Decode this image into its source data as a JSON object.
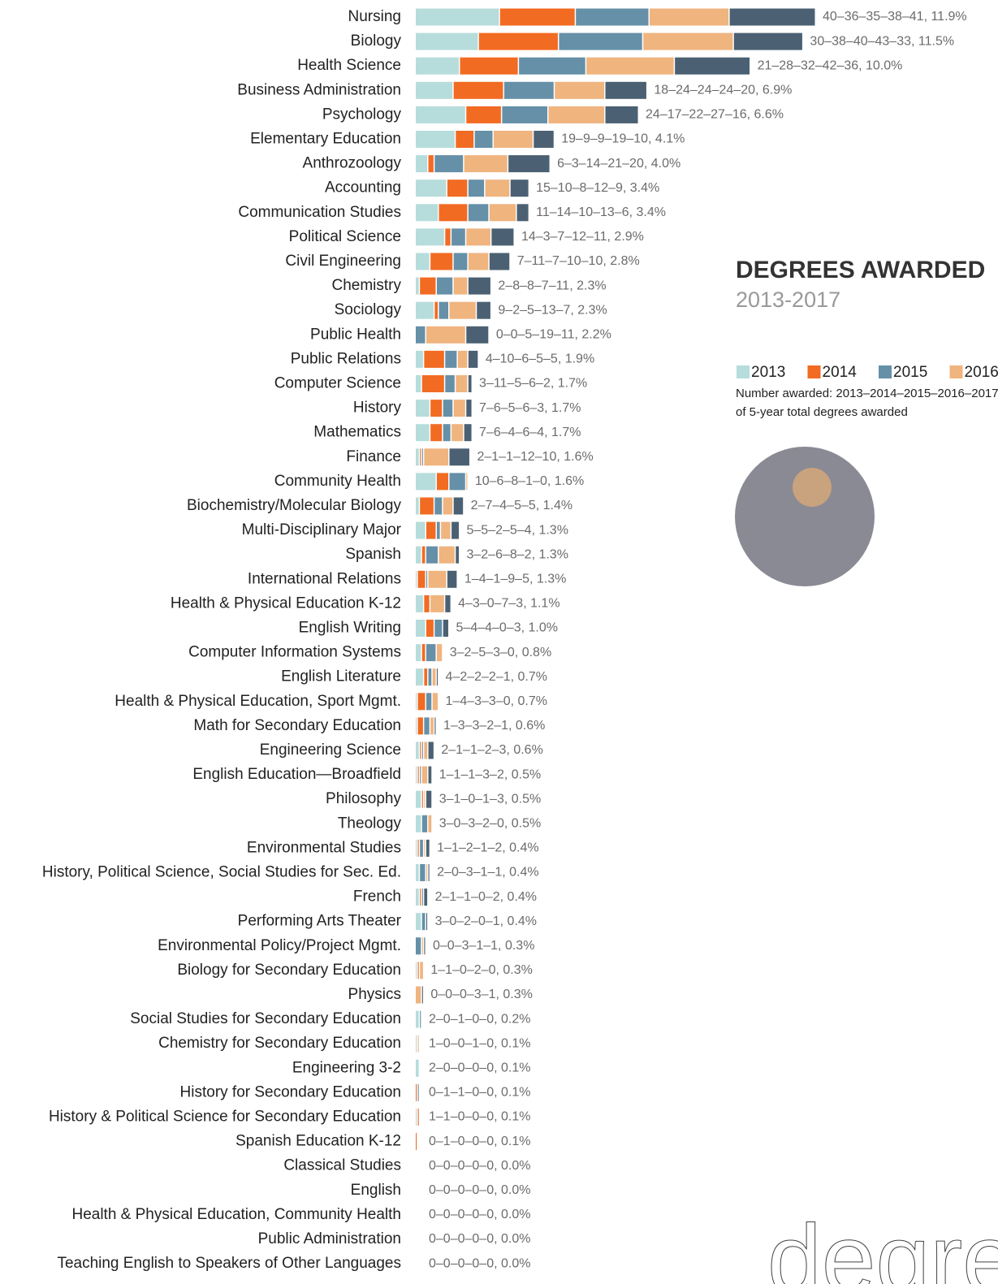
{
  "chart_data": {
    "type": "stacked_bar_horizontal",
    "title": "DEGREES AWARDED",
    "subtitle": "2013-2017",
    "note": [
      "Number awarded: 2013–2014–2015–2016–2017, %",
      "of 5-year total degrees awarded"
    ],
    "watermark": "degrees",
    "categories": [
      "Nursing",
      "Biology",
      "Health Science",
      "Business Administration",
      "Psychology",
      "Elementary Education",
      "Anthrozoology",
      "Accounting",
      "Communication Studies",
      "Political Science",
      "Civil Engineering",
      "Chemistry",
      "Sociology",
      "Public Health",
      "Public Relations",
      "Computer Science",
      "History",
      "Mathematics",
      "Finance",
      "Community Health",
      "Biochemistry/Molecular Biology",
      "Multi-Disciplinary Major",
      "Spanish",
      "International Relations",
      "Health & Physical Education K-12",
      "English Writing",
      "Computer Information Systems",
      "English Literature",
      "Health & Physical Education, Sport Mgmt.",
      "Math for Secondary Education",
      "Engineering Science",
      "English Education—Broadfield",
      "Philosophy",
      "Theology",
      "Environmental Studies",
      "History, Political Science, Social Studies for Sec. Ed.",
      "French",
      "Performing Arts Theater",
      "Environmental Policy/Project Mgmt.",
      "Biology for Secondary Education",
      "Physics",
      "Social Studies for Secondary Education",
      "Chemistry for Secondary Education",
      "Engineering 3-2",
      "History for Secondary Education",
      "History & Political Science for Secondary Education",
      "Spanish Education K-12",
      "Classical Studies",
      "English",
      "Health & Physical Education, Community Health",
      "Public Administration",
      "Teaching English to Speakers of Other Languages"
    ],
    "series": [
      {
        "name": "2013",
        "color": "#b7dcdc",
        "values": [
          40,
          30,
          21,
          18,
          24,
          19,
          6,
          15,
          11,
          14,
          7,
          2,
          9,
          0,
          4,
          3,
          7,
          7,
          2,
          10,
          2,
          5,
          3,
          1,
          4,
          5,
          3,
          4,
          1,
          1,
          2,
          1,
          3,
          3,
          1,
          2,
          2,
          3,
          0,
          1,
          0,
          2,
          1,
          2,
          0,
          1,
          0,
          0,
          0,
          0,
          0,
          0
        ]
      },
      {
        "name": "2014",
        "color": "#f26b22",
        "values": [
          36,
          38,
          28,
          24,
          17,
          9,
          3,
          10,
          14,
          3,
          11,
          8,
          2,
          0,
          10,
          11,
          6,
          6,
          1,
          6,
          7,
          5,
          2,
          4,
          3,
          4,
          2,
          2,
          4,
          3,
          1,
          1,
          1,
          0,
          1,
          0,
          1,
          0,
          0,
          1,
          0,
          0,
          0,
          0,
          1,
          1,
          1,
          0,
          0,
          0,
          0,
          0
        ]
      },
      {
        "name": "2015",
        "color": "#6590a8",
        "values": [
          35,
          40,
          32,
          24,
          22,
          9,
          14,
          8,
          10,
          7,
          7,
          8,
          5,
          5,
          6,
          5,
          5,
          4,
          1,
          8,
          4,
          2,
          6,
          1,
          0,
          4,
          5,
          2,
          3,
          3,
          1,
          1,
          0,
          3,
          2,
          3,
          1,
          2,
          3,
          0,
          0,
          1,
          0,
          0,
          1,
          0,
          0,
          0,
          0,
          0,
          0,
          0
        ]
      },
      {
        "name": "2016",
        "color": "#f0b47f",
        "values": [
          38,
          43,
          42,
          24,
          27,
          19,
          21,
          12,
          13,
          12,
          10,
          7,
          13,
          19,
          5,
          6,
          6,
          6,
          12,
          1,
          5,
          5,
          8,
          9,
          7,
          0,
          3,
          2,
          3,
          2,
          2,
          3,
          1,
          2,
          1,
          1,
          0,
          0,
          1,
          2,
          3,
          0,
          1,
          0,
          0,
          0,
          0,
          0,
          0,
          0,
          0,
          0
        ]
      },
      {
        "name": "2017",
        "color": "#4b6173",
        "values": [
          41,
          33,
          36,
          20,
          16,
          10,
          20,
          9,
          6,
          11,
          10,
          11,
          7,
          11,
          5,
          2,
          3,
          4,
          10,
          0,
          5,
          4,
          2,
          5,
          3,
          3,
          0,
          1,
          0,
          1,
          3,
          2,
          3,
          0,
          2,
          1,
          2,
          1,
          1,
          0,
          1,
          0,
          0,
          0,
          0,
          0,
          0,
          0,
          0,
          0,
          0,
          0
        ]
      }
    ],
    "value_labels": [
      "40–36–35–38–41, 11.9%",
      "30–38–40–43–33, 11.5%",
      "21–28–32–42–36, 10.0%",
      "18–24–24–24–20, 6.9%",
      "24–17–22–27–16, 6.6%",
      "19–9–9–19–10, 4.1%",
      "6–3–14–21–20, 4.0%",
      "15–10–8–12–9, 3.4%",
      "11–14–10–13–6, 3.4%",
      "14–3–7–12–11, 2.9%",
      "7–11–7–10–10, 2.8%",
      "2–8–8–7–11, 2.3%",
      "9–2–5–13–7, 2.3%",
      "0–0–5–19–11, 2.2%",
      "4–10–6–5–5, 1.9%",
      "3–11–5–6–2, 1.7%",
      "7–6–5–6–3, 1.7%",
      "7–6–4–6–4, 1.7%",
      "2–1–1–12–10, 1.6%",
      "10–6–8–1–0, 1.6%",
      "2–7–4–5–5, 1.4%",
      "5–5–2–5–4, 1.3%",
      "3–2–6–8–2, 1.3%",
      "1–4–1–9–5, 1.3%",
      "4–3–0–7–3, 1.1%",
      "5–4–4–0–3, 1.0%",
      "3–2–5–3–0, 0.8%",
      "4–2–2–2–1, 0.7%",
      "1–4–3–3–0, 0.7%",
      "1–3–3–2–1, 0.6%",
      "2–1–1–2–3, 0.6%",
      "1–1–1–3–2, 0.5%",
      "3–1–0–1–3, 0.5%",
      "3–0–3–2–0, 0.5%",
      "1–1–2–1–2, 0.4%",
      "2–0–3–1–1, 0.4%",
      "2–1–1–0–2, 0.4%",
      "3–0–2–0–1, 0.4%",
      "0–0–3–1–1, 0.3%",
      "1–1–0–2–0, 0.3%",
      "0–0–0–3–1, 0.3%",
      "2–0–1–0–0, 0.2%",
      "1–0–0–1–0, 0.1%",
      "2–0–0–0–0, 0.1%",
      "0–1–1–0–0, 0.1%",
      "1–1–0–0–0, 0.1%",
      "0–1–0–0–0, 0.1%",
      "0–0–0–0–0, 0.0%",
      "0–0–0–0–0, 0.0%",
      "0–0–0–0–0, 0.0%",
      "0–0–0–0–0, 0.0%",
      "0–0–0–0–0, 0.0%"
    ]
  }
}
